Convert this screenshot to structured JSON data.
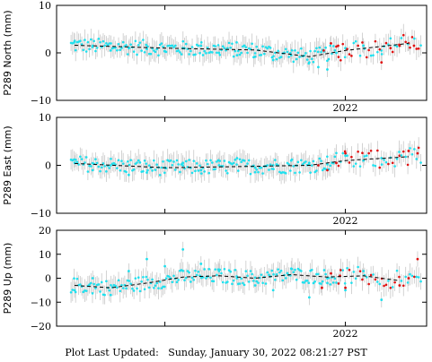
{
  "footer": {
    "label": "Plot Last Updated:",
    "value": "Sunday, January 30, 2022 08:21:27 PST"
  },
  "colors": {
    "frame": "#000000",
    "errorbar": "#c8c8c8",
    "point": "#1fe0ee",
    "recent_point": "#e01010",
    "trend": "#000000"
  },
  "chart_data": [
    {
      "type": "scatter",
      "ylabel": "P289 North (mm)",
      "ylim": [
        -10,
        10
      ],
      "yticks": [
        "10",
        "0",
        "−10"
      ],
      "yticks_values": [
        10,
        0,
        -10
      ],
      "xlim": [
        2020.4,
        2022.45
      ],
      "xticks": [
        "2022"
      ],
      "xtick_values": [
        2022.0
      ],
      "trend": {
        "x": [
          2020.5,
          2021.0,
          2021.5,
          2021.8,
          2022.0,
          2022.35
        ],
        "y": [
          1.6,
          1.0,
          0.6,
          -0.8,
          0.5,
          2.0
        ]
      },
      "series": [
        {
          "x": [
            2020.5,
            2020.6,
            2020.7,
            2020.8,
            2020.9,
            2021.0,
            2021.1,
            2021.2,
            2021.3,
            2021.4,
            2021.5,
            2021.6,
            2021.7,
            2021.8,
            2021.85,
            2021.9,
            2021.95,
            2022.0,
            2022.1,
            2022.2
          ],
          "y": [
            2.5,
            1.5,
            0.5,
            1.0,
            0.8,
            0.3,
            1.0,
            1.5,
            0.0,
            -0.5,
            -0.8,
            -1.5,
            -0.5,
            -2.0,
            -3.0,
            -3.5,
            0.0,
            1.0,
            1.5,
            0.5
          ]
        },
        {
          "x": [
            2021.88,
            2021.92,
            2021.96,
            2022.2,
            2022.25,
            2022.3,
            2022.35,
            2022.38
          ],
          "y": [
            0.5,
            2.0,
            1.5,
            -2.0,
            1.0,
            1.5,
            2.0,
            1.5
          ]
        }
      ]
    },
    {
      "type": "scatter",
      "ylabel": "P289 East (mm)",
      "ylim": [
        -10,
        10
      ],
      "yticks": [
        "10",
        "0",
        "−10"
      ],
      "yticks_values": [
        10,
        0,
        -10
      ],
      "xlim": [
        2020.4,
        2022.45
      ],
      "xticks": [
        "2022"
      ],
      "xtick_values": [
        2022.0
      ],
      "trend": {
        "x": [
          2020.5,
          2021.0,
          2021.5,
          2021.8,
          2022.0,
          2022.35
        ],
        "y": [
          0.4,
          -0.5,
          -0.2,
          0.0,
          1.0,
          1.8
        ]
      },
      "series": [
        {
          "x": [
            2020.5,
            2020.6,
            2020.7,
            2020.8,
            2020.9,
            2021.0,
            2021.1,
            2021.2,
            2021.3,
            2021.4,
            2021.5,
            2021.6,
            2021.7,
            2021.8,
            2021.9,
            2022.0,
            2022.1,
            2022.2
          ],
          "y": [
            0.5,
            -1.0,
            0.0,
            -2.0,
            -1.5,
            -0.5,
            0.5,
            -1.0,
            0.0,
            1.5,
            -0.5,
            0.0,
            1.0,
            0.5,
            0.2,
            2.0,
            1.0,
            1.5
          ]
        },
        {
          "x": [
            2021.85,
            2021.9,
            2021.95,
            2022.0,
            2022.3,
            2022.35,
            2022.4
          ],
          "y": [
            0.0,
            -1.0,
            0.5,
            2.5,
            2.0,
            3.0,
            2.5
          ]
        }
      ]
    },
    {
      "type": "scatter",
      "ylabel": "P289 Up (mm)",
      "ylim": [
        -20,
        20
      ],
      "yticks": [
        "20",
        "10",
        "0",
        "−10",
        "−20"
      ],
      "yticks_values": [
        20,
        10,
        0,
        -10,
        -20
      ],
      "xlim": [
        2020.4,
        2022.45
      ],
      "xticks": [
        "2022"
      ],
      "xtick_values": [
        2022.0
      ],
      "trend": {
        "x": [
          2020.5,
          2020.7,
          2020.9,
          2021.1,
          2021.3,
          2021.5,
          2021.7,
          2021.9,
          2022.1,
          2022.3
        ],
        "y": [
          -3.0,
          -4.0,
          -2.0,
          0.5,
          1.0,
          0.0,
          1.5,
          0.5,
          1.0,
          -1.0
        ]
      },
      "series": [
        {
          "x": [
            2020.5,
            2020.6,
            2020.7,
            2020.8,
            2020.9,
            2021.0,
            2021.1,
            2021.2,
            2021.3,
            2021.4,
            2021.5,
            2021.6,
            2021.7,
            2021.8,
            2021.9,
            2022.0,
            2022.1,
            2022.2
          ],
          "y": [
            -5.0,
            0.0,
            -7.0,
            3.0,
            8.0,
            5.0,
            12.0,
            6.0,
            3.0,
            0.0,
            -3.0,
            -5.0,
            4.0,
            -8.0,
            -2.0,
            -5.0,
            3.0,
            -9.0
          ]
        },
        {
          "x": [
            2021.87,
            2021.92,
            2021.97,
            2022.0,
            2022.3,
            2022.35,
            2022.4
          ],
          "y": [
            -4.0,
            2.0,
            1.0,
            -4.0,
            -3.0,
            0.0,
            8.0
          ]
        }
      ]
    }
  ]
}
